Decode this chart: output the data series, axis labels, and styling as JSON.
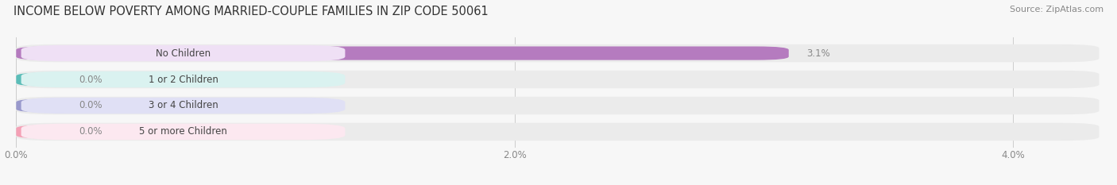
{
  "title": "INCOME BELOW POVERTY AMONG MARRIED-COUPLE FAMILIES IN ZIP CODE 50061",
  "source": "Source: ZipAtlas.com",
  "categories": [
    "No Children",
    "1 or 2 Children",
    "3 or 4 Children",
    "5 or more Children"
  ],
  "values": [
    3.1,
    0.0,
    0.0,
    0.0
  ],
  "bar_colors": [
    "#b57bbf",
    "#5bbdb8",
    "#9999cc",
    "#f4a0b5"
  ],
  "label_bg_colors": [
    "#efe0f5",
    "#daf2f0",
    "#e0e0f5",
    "#fce8f0"
  ],
  "bar_bg_color": "#ebebeb",
  "xlim_max": 4.35,
  "xticks": [
    0.0,
    2.0,
    4.0
  ],
  "xtick_labels": [
    "0.0%",
    "2.0%",
    "4.0%"
  ],
  "bg_color": "#f7f7f7",
  "title_fontsize": 10.5,
  "tick_fontsize": 8.5,
  "label_fontsize": 8.5,
  "value_color": "#888888",
  "source_fontsize": 8
}
